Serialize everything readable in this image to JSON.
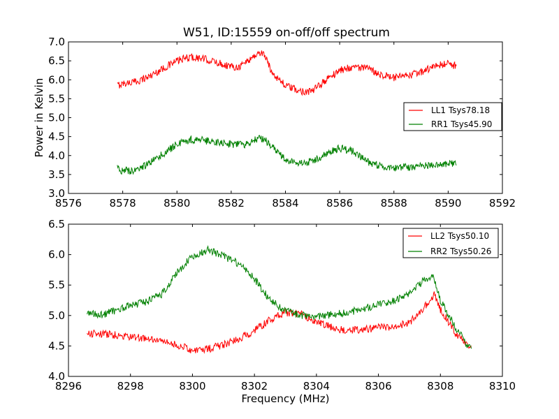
{
  "title": "W51, ID:15559 on-off/off spectrum",
  "chart_data": [
    {
      "type": "line",
      "title": "W51, ID:15559 on-off/off spectrum",
      "xlabel": "",
      "ylabel": "Power in Kelvin",
      "xlim": [
        8576,
        8592
      ],
      "ylim": [
        3.0,
        7.0
      ],
      "xticks": [
        "8576",
        "8578",
        "8580",
        "8582",
        "8584",
        "8586",
        "8588",
        "8590",
        "8592"
      ],
      "yticks": [
        "3.0",
        "3.5",
        "4.0",
        "4.5",
        "5.0",
        "5.5",
        "6.0",
        "6.5",
        "7.0"
      ],
      "grid": false,
      "legend_position": "right",
      "series": [
        {
          "name": "LL1 Tsys78.18",
          "color": "#ff0000",
          "x": [
            8577.8,
            8578.0,
            8578.5,
            8579.0,
            8579.5,
            8580.0,
            8580.5,
            8581.0,
            8581.5,
            8582.0,
            8582.3,
            8582.6,
            8583.0,
            8583.2,
            8583.5,
            8584.0,
            8584.5,
            8585.0,
            8585.5,
            8586.0,
            8586.5,
            8587.0,
            8587.5,
            8588.0,
            8588.5,
            8589.0,
            8589.5,
            8590.0,
            8590.3
          ],
          "y": [
            5.85,
            5.9,
            5.95,
            6.1,
            6.3,
            6.5,
            6.6,
            6.55,
            6.45,
            6.35,
            6.35,
            6.5,
            6.7,
            6.7,
            6.2,
            5.85,
            5.7,
            5.7,
            6.0,
            6.25,
            6.35,
            6.3,
            6.15,
            6.05,
            6.1,
            6.2,
            6.35,
            6.45,
            6.35
          ]
        },
        {
          "name": "RR1 Tsys45.90",
          "color": "#008000",
          "x": [
            8577.8,
            8578.0,
            8578.5,
            8579.0,
            8579.5,
            8580.0,
            8580.5,
            8581.0,
            8581.5,
            8582.0,
            8582.5,
            8583.0,
            8583.2,
            8583.5,
            8584.0,
            8584.5,
            8585.0,
            8585.5,
            8586.0,
            8586.5,
            8587.0,
            8587.5,
            8588.0,
            8588.5,
            8589.0,
            8589.5,
            8590.0,
            8590.3
          ],
          "y": [
            3.65,
            3.6,
            3.6,
            3.8,
            4.05,
            4.3,
            4.42,
            4.4,
            4.35,
            4.3,
            4.3,
            4.45,
            4.45,
            4.25,
            3.9,
            3.78,
            3.85,
            4.05,
            4.2,
            4.1,
            3.85,
            3.72,
            3.68,
            3.7,
            3.72,
            3.75,
            3.8,
            3.8
          ]
        }
      ]
    },
    {
      "type": "line",
      "title": "",
      "xlabel": "Frequency (MHz)",
      "ylabel": "",
      "xlim": [
        8296,
        8310
      ],
      "ylim": [
        4.0,
        6.5
      ],
      "xticks": [
        "8296",
        "8298",
        "8300",
        "8302",
        "8304",
        "8306",
        "8308",
        "8310"
      ],
      "yticks": [
        "4.0",
        "4.5",
        "5.0",
        "5.5",
        "6.0",
        "6.5"
      ],
      "grid": false,
      "legend_position": "top-right",
      "series": [
        {
          "name": "LL2 Tsys50.10",
          "color": "#ff0000",
          "x": [
            8296.6,
            8297.0,
            8297.5,
            8298.0,
            8298.5,
            8299.0,
            8299.5,
            8300.0,
            8300.5,
            8301.0,
            8301.5,
            8302.0,
            8302.5,
            8303.0,
            8303.5,
            8304.0,
            8304.5,
            8305.0,
            8305.5,
            8306.0,
            8306.5,
            8307.0,
            8307.5,
            8307.8,
            8308.0,
            8308.5,
            8309.0
          ],
          "y": [
            4.7,
            4.7,
            4.68,
            4.65,
            4.62,
            4.58,
            4.52,
            4.43,
            4.45,
            4.52,
            4.62,
            4.75,
            4.93,
            5.05,
            5.02,
            4.9,
            4.8,
            4.75,
            4.77,
            4.8,
            4.82,
            4.88,
            5.15,
            5.35,
            5.1,
            4.7,
            4.45
          ]
        },
        {
          "name": "RR2 Tsys50.26",
          "color": "#008000",
          "x": [
            8296.6,
            8297.0,
            8297.5,
            8298.0,
            8298.5,
            8299.0,
            8299.5,
            8300.0,
            8300.5,
            8301.0,
            8301.5,
            8302.0,
            8302.5,
            8303.0,
            8303.5,
            8304.0,
            8304.5,
            8305.0,
            8305.5,
            8306.0,
            8306.5,
            8307.0,
            8307.5,
            8307.8,
            8308.0,
            8308.5,
            8309.0
          ],
          "y": [
            5.05,
            5.0,
            5.08,
            5.17,
            5.22,
            5.35,
            5.7,
            5.98,
            6.08,
            5.98,
            5.85,
            5.6,
            5.25,
            5.08,
            5.0,
            4.98,
            5.02,
            5.05,
            5.1,
            5.18,
            5.25,
            5.35,
            5.6,
            5.62,
            5.25,
            4.8,
            4.42
          ]
        }
      ]
    }
  ]
}
